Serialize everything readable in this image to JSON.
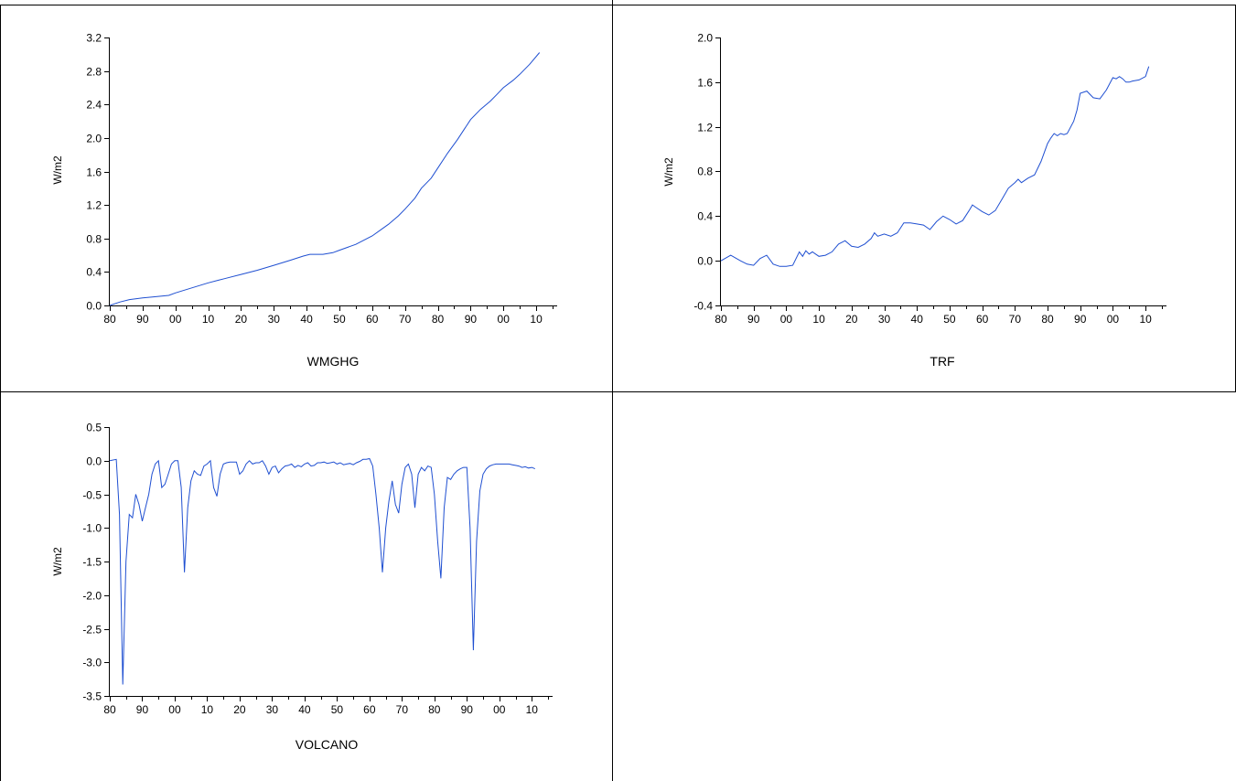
{
  "line_color": "#1f4fd1",
  "frame_color": "#000000",
  "chart_data": [
    {
      "type": "line",
      "xlabel": "WMGHG",
      "ylabel": "W/m2",
      "x_tick_labels": [
        "80",
        "90",
        "00",
        "10",
        "20",
        "30",
        "40",
        "50",
        "60",
        "70",
        "80",
        "90",
        "00",
        "10"
      ],
      "x_tick_years": [
        1880,
        1890,
        1900,
        1910,
        1920,
        1930,
        1940,
        1950,
        1960,
        1970,
        1980,
        1990,
        2000,
        2010
      ],
      "xlim": [
        1880,
        2015
      ],
      "yticks": [
        "0.0",
        "0.4",
        "0.8",
        "1.2",
        "1.6",
        "2.0",
        "2.4",
        "2.8",
        "3.2"
      ],
      "ylim": [
        0.0,
        3.2
      ],
      "grid": false,
      "x": [
        1880,
        1883,
        1886,
        1890,
        1893,
        1898,
        1900,
        1905,
        1910,
        1913,
        1915,
        1920,
        1925,
        1930,
        1935,
        1939,
        1941,
        1945,
        1948,
        1950,
        1955,
        1960,
        1965,
        1968,
        1970,
        1973,
        1975,
        1978,
        1980,
        1983,
        1986,
        1988,
        1990,
        1993,
        1996,
        1998,
        2000,
        2003,
        2005,
        2008,
        2011
      ],
      "y": [
        0.0,
        0.04,
        0.07,
        0.09,
        0.1,
        0.12,
        0.15,
        0.21,
        0.27,
        0.3,
        0.32,
        0.37,
        0.42,
        0.48,
        0.54,
        0.59,
        0.61,
        0.61,
        0.63,
        0.66,
        0.73,
        0.83,
        0.97,
        1.07,
        1.15,
        1.28,
        1.4,
        1.52,
        1.64,
        1.82,
        1.98,
        2.1,
        2.22,
        2.34,
        2.44,
        2.52,
        2.6,
        2.69,
        2.76,
        2.88,
        3.02
      ]
    },
    {
      "type": "line",
      "xlabel": "TRF",
      "ylabel": "W/m2",
      "x_tick_labels": [
        "80",
        "90",
        "00",
        "10",
        "20",
        "30",
        "40",
        "50",
        "60",
        "70",
        "80",
        "90",
        "00",
        "10"
      ],
      "x_tick_years": [
        1880,
        1890,
        1900,
        1910,
        1920,
        1930,
        1940,
        1950,
        1960,
        1970,
        1980,
        1990,
        2000,
        2010
      ],
      "xlim": [
        1880,
        2015
      ],
      "yticks": [
        "-0.4",
        "0.0",
        "0.4",
        "0.8",
        "1.2",
        "1.6",
        "2.0"
      ],
      "ylim": [
        -0.4,
        2.0
      ],
      "grid": false,
      "x": [
        1880,
        1883,
        1886,
        1888,
        1890,
        1892,
        1894,
        1896,
        1898,
        1900,
        1902,
        1904,
        1905,
        1906,
        1907,
        1908,
        1910,
        1912,
        1914,
        1916,
        1918,
        1920,
        1922,
        1924,
        1926,
        1927,
        1928,
        1930,
        1932,
        1934,
        1936,
        1938,
        1940,
        1942,
        1944,
        1946,
        1948,
        1950,
        1952,
        1954,
        1956,
        1957,
        1958,
        1960,
        1962,
        1964,
        1966,
        1968,
        1970,
        1971,
        1972,
        1974,
        1976,
        1978,
        1980,
        1981,
        1982,
        1983,
        1984,
        1985,
        1986,
        1988,
        1989,
        1990,
        1992,
        1994,
        1996,
        1998,
        2000,
        2001,
        2002,
        2003,
        2004,
        2005,
        2006,
        2008,
        2010,
        2011
      ],
      "y": [
        0.0,
        0.05,
        0.0,
        -0.03,
        -0.04,
        0.02,
        0.05,
        -0.03,
        -0.05,
        -0.05,
        -0.04,
        0.08,
        0.04,
        0.09,
        0.06,
        0.08,
        0.04,
        0.05,
        0.08,
        0.15,
        0.18,
        0.13,
        0.12,
        0.15,
        0.2,
        0.25,
        0.22,
        0.24,
        0.22,
        0.25,
        0.34,
        0.34,
        0.33,
        0.32,
        0.28,
        0.35,
        0.4,
        0.37,
        0.33,
        0.36,
        0.45,
        0.5,
        0.48,
        0.44,
        0.41,
        0.45,
        0.55,
        0.65,
        0.7,
        0.73,
        0.7,
        0.74,
        0.77,
        0.89,
        1.05,
        1.1,
        1.14,
        1.12,
        1.14,
        1.13,
        1.14,
        1.25,
        1.35,
        1.5,
        1.52,
        1.46,
        1.45,
        1.53,
        1.64,
        1.63,
        1.65,
        1.63,
        1.6,
        1.6,
        1.61,
        1.62,
        1.65,
        1.74
      ]
    },
    {
      "type": "line",
      "xlabel": "VOLCANO",
      "ylabel": "W/m2",
      "x_tick_labels": [
        "80",
        "90",
        "00",
        "10",
        "20",
        "30",
        "40",
        "50",
        "60",
        "70",
        "80",
        "90",
        "00",
        "10"
      ],
      "x_tick_years": [
        1880,
        1890,
        1900,
        1910,
        1920,
        1930,
        1940,
        1950,
        1960,
        1970,
        1980,
        1990,
        2000,
        2010
      ],
      "xlim": [
        1880,
        2015
      ],
      "yticks": [
        "0.5",
        "0.0",
        "-0.5",
        "-1.0",
        "-1.5",
        "-2.0",
        "-2.5",
        "-3.0",
        "-3.5"
      ],
      "ylim": [
        -3.5,
        0.5
      ],
      "grid": false,
      "x": [
        1880,
        1882,
        1883,
        1884,
        1885,
        1886,
        1887,
        1888,
        1889,
        1890,
        1891,
        1892,
        1893,
        1894,
        1895,
        1896,
        1897,
        1898,
        1899,
        1900,
        1901,
        1902,
        1903,
        1904,
        1905,
        1906,
        1907,
        1908,
        1909,
        1910,
        1911,
        1912,
        1913,
        1914,
        1915,
        1916,
        1917,
        1918,
        1919,
        1920,
        1921,
        1922,
        1923,
        1924,
        1925,
        1926,
        1927,
        1928,
        1929,
        1930,
        1931,
        1932,
        1933,
        1934,
        1935,
        1936,
        1937,
        1938,
        1939,
        1940,
        1941,
        1942,
        1943,
        1944,
        1945,
        1946,
        1947,
        1948,
        1949,
        1950,
        1951,
        1952,
        1953,
        1954,
        1955,
        1956,
        1957,
        1958,
        1959,
        1960,
        1961,
        1962,
        1963,
        1964,
        1965,
        1966,
        1967,
        1968,
        1969,
        1970,
        1971,
        1972,
        1973,
        1974,
        1975,
        1976,
        1977,
        1978,
        1979,
        1980,
        1981,
        1982,
        1983,
        1984,
        1985,
        1986,
        1987,
        1988,
        1989,
        1990,
        1991,
        1992,
        1993,
        1994,
        1995,
        1996,
        1997,
        1998,
        1999,
        2000,
        2001,
        2002,
        2003,
        2004,
        2005,
        2006,
        2007,
        2008,
        2009,
        2010,
        2011
      ],
      "y": [
        0.0,
        0.02,
        -0.8,
        -3.33,
        -1.5,
        -0.8,
        -0.85,
        -0.5,
        -0.65,
        -0.9,
        -0.7,
        -0.5,
        -0.2,
        -0.05,
        0.0,
        -0.4,
        -0.35,
        -0.2,
        -0.05,
        0.0,
        0.0,
        -0.4,
        -1.66,
        -0.7,
        -0.3,
        -0.15,
        -0.2,
        -0.22,
        -0.08,
        -0.05,
        0.0,
        -0.4,
        -0.53,
        -0.2,
        -0.05,
        -0.03,
        -0.02,
        -0.02,
        -0.02,
        -0.2,
        -0.15,
        -0.05,
        0.0,
        -0.05,
        -0.03,
        -0.03,
        0.0,
        -0.08,
        -0.2,
        -0.1,
        -0.08,
        -0.18,
        -0.12,
        -0.08,
        -0.07,
        -0.05,
        -0.1,
        -0.07,
        -0.09,
        -0.05,
        -0.03,
        -0.08,
        -0.07,
        -0.03,
        -0.03,
        -0.02,
        -0.04,
        -0.03,
        -0.02,
        -0.05,
        -0.03,
        -0.06,
        -0.05,
        -0.04,
        -0.06,
        -0.03,
        -0.01,
        0.02,
        0.02,
        0.03,
        -0.08,
        -0.5,
        -1.0,
        -1.66,
        -1.0,
        -0.6,
        -0.3,
        -0.65,
        -0.78,
        -0.35,
        -0.1,
        -0.05,
        -0.2,
        -0.7,
        -0.2,
        -0.1,
        -0.15,
        -0.08,
        -0.1,
        -0.5,
        -1.2,
        -1.75,
        -0.7,
        -0.25,
        -0.28,
        -0.2,
        -0.15,
        -0.12,
        -0.1,
        -0.1,
        -1.0,
        -2.82,
        -1.2,
        -0.45,
        -0.2,
        -0.12,
        -0.08,
        -0.06,
        -0.05,
        -0.05,
        -0.05,
        -0.05,
        -0.05,
        -0.06,
        -0.07,
        -0.08,
        -0.1,
        -0.09,
        -0.11,
        -0.1,
        -0.12
      ]
    }
  ]
}
